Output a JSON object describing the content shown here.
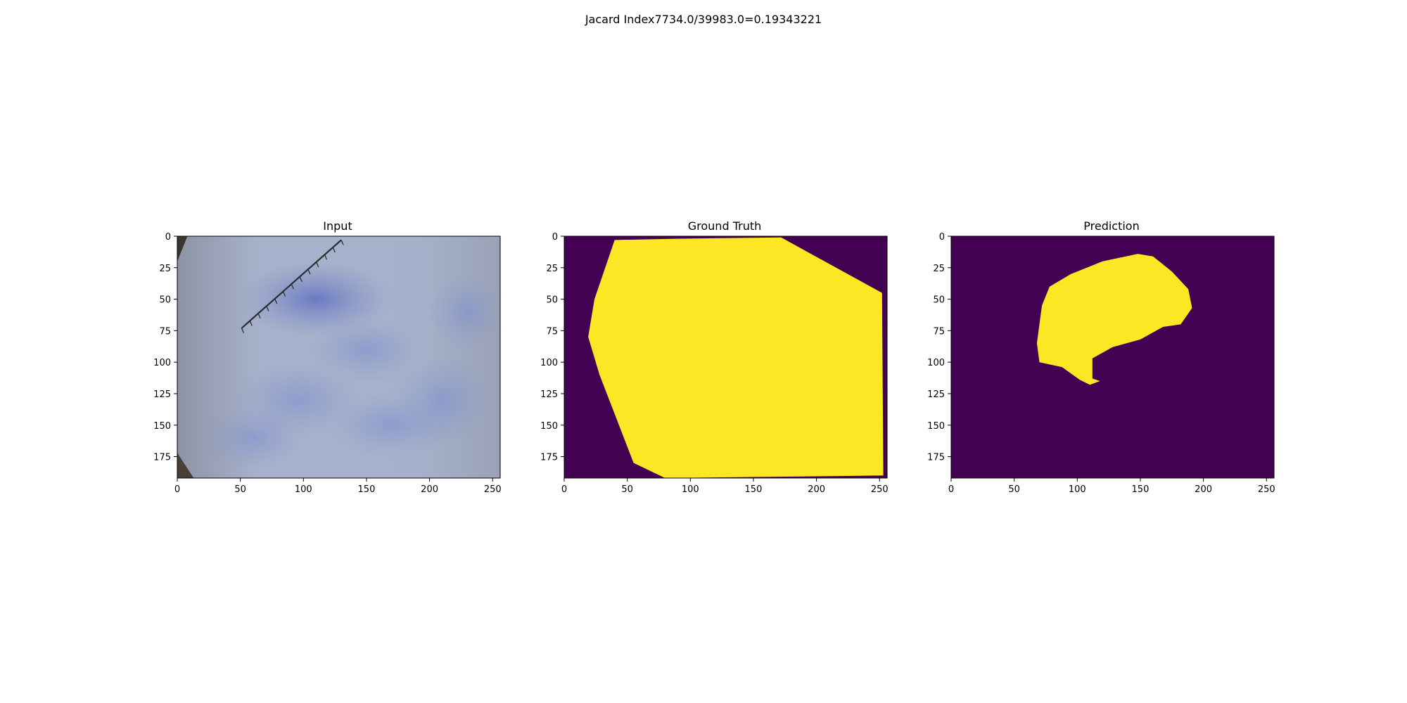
{
  "figure": {
    "suptitle": "Jacard Index7734.0/39983.0=0.19343221"
  },
  "colors": {
    "mask_background": "#440154",
    "mask_foreground": "#fde725",
    "photo_base": "#a4aec8",
    "photo_stain": "#6b7bc0",
    "ruler": "#2a2e33"
  },
  "chart_data": [
    {
      "type": "image",
      "title": "Input",
      "xlim": [
        0,
        256
      ],
      "ylim": [
        192,
        0
      ],
      "xticks": [
        0,
        50,
        100,
        150,
        200,
        250
      ],
      "yticks": [
        0,
        25,
        50,
        75,
        100,
        125,
        150,
        175
      ],
      "content": "dermoscopy photo, bluish skin with ruler",
      "ruler": {
        "start": [
          130,
          3
        ],
        "end": [
          51,
          73
        ]
      }
    },
    {
      "type": "image",
      "title": "Ground Truth",
      "xlim": [
        0,
        256
      ],
      "ylim": [
        192,
        0
      ],
      "xticks": [
        0,
        50,
        100,
        150,
        200,
        250
      ],
      "yticks": [
        0,
        25,
        50,
        75,
        100,
        125,
        150,
        175
      ],
      "mask_polygon": [
        [
          40,
          3
        ],
        [
          88,
          2
        ],
        [
          172,
          1
        ],
        [
          252,
          45
        ],
        [
          253,
          190
        ],
        [
          80,
          192
        ],
        [
          55,
          180
        ],
        [
          28,
          110
        ],
        [
          19,
          80
        ],
        [
          24,
          50
        ]
      ]
    },
    {
      "type": "image",
      "title": "Prediction",
      "xlim": [
        0,
        256
      ],
      "ylim": [
        192,
        0
      ],
      "xticks": [
        0,
        50,
        100,
        150,
        200,
        250
      ],
      "yticks": [
        0,
        25,
        50,
        75,
        100,
        125,
        150,
        175
      ],
      "mask_polygon": [
        [
          72,
          55
        ],
        [
          78,
          40
        ],
        [
          95,
          30
        ],
        [
          120,
          20
        ],
        [
          148,
          14
        ],
        [
          160,
          16
        ],
        [
          175,
          28
        ],
        [
          188,
          42
        ],
        [
          191,
          57
        ],
        [
          182,
          70
        ],
        [
          168,
          72
        ],
        [
          150,
          82
        ],
        [
          128,
          88
        ],
        [
          112,
          97
        ],
        [
          112,
          113
        ],
        [
          118,
          115
        ],
        [
          110,
          118
        ],
        [
          102,
          114
        ],
        [
          88,
          104
        ],
        [
          70,
          100
        ],
        [
          68,
          85
        ]
      ]
    }
  ]
}
